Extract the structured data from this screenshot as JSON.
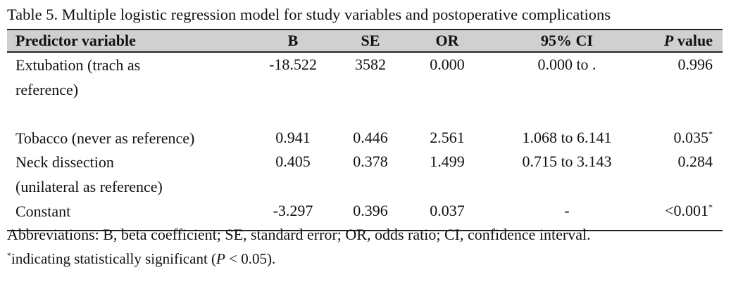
{
  "caption": "Table 5. Multiple logistic regression model for study variables and postoperative complications",
  "table": {
    "headers": {
      "predictor": "Predictor variable",
      "b": "B",
      "se": "SE",
      "or": "OR",
      "ci": "95% CI",
      "p_italic": "P",
      "p_rest": " value"
    },
    "rows": [
      {
        "predictor_line1": "Extubation (trach as",
        "predictor_line2": "reference)",
        "b": "-18.522",
        "se": "3582",
        "or": "0.000",
        "ci": "0.000 to .",
        "p": "0.996",
        "p_mark": ""
      },
      {
        "predictor_line1": "Tobacco (never as reference)",
        "b": "0.941",
        "se": "0.446",
        "or": "2.561",
        "ci": "1.068 to 6.141",
        "p": "0.035",
        "p_mark": "*"
      },
      {
        "predictor_line1": "Neck dissection",
        "predictor_line2": "(unilateral as reference)",
        "b": "0.405",
        "se": "0.378",
        "or": "1.499",
        "ci": "0.715 to 3.143",
        "p": "0.284",
        "p_mark": ""
      },
      {
        "predictor_line1": "Constant",
        "b": "-3.297",
        "se": "0.396",
        "or": "0.037",
        "ci": "-",
        "p": "<0.001",
        "p_mark": "*"
      }
    ]
  },
  "footnotes": {
    "abbreviations": "Abbreviations: B, beta coefficient; SE, standard error; OR, odds ratio; CI, confidence interval.",
    "significance_mark": "*",
    "significance_pre": "indicating statistically significant (",
    "significance_italic": "P",
    "significance_post": " < 0.05)."
  }
}
